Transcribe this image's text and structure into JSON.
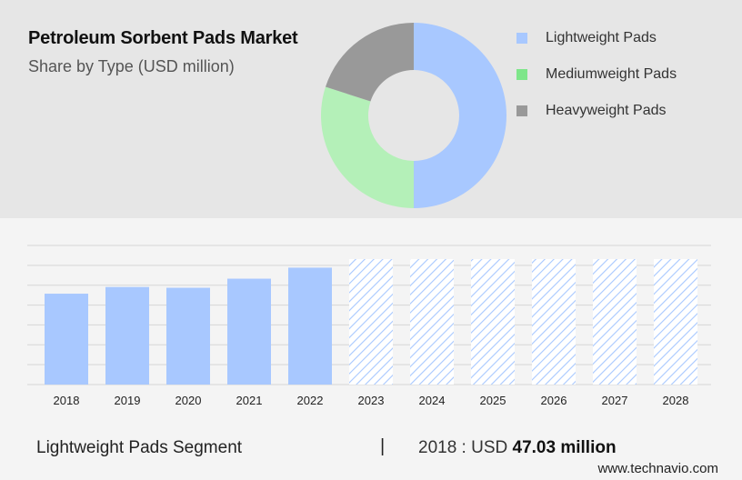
{
  "header": {
    "title": "Petroleum Sorbent Pads Market",
    "subtitle": "Share by Type (USD million)"
  },
  "chart_data": [
    {
      "type": "pie",
      "variant": "donut",
      "title": "Petroleum Sorbent Pads Market",
      "subtitle": "Share by Type (USD million)",
      "legend_position": "right",
      "slices": [
        {
          "name": "Lightweight Pads",
          "value": 50,
          "color": "#a8c8ff"
        },
        {
          "name": "Mediumweight Pads",
          "value": 30,
          "color": "#b4f0b8"
        },
        {
          "name": "Heavyweight Pads",
          "value": 20,
          "color": "#999999"
        }
      ],
      "legend_colors": [
        "#a8c8ff",
        "#7ee68a",
        "#999999"
      ]
    },
    {
      "type": "bar",
      "categories": [
        "2018",
        "2019",
        "2020",
        "2021",
        "2022",
        "2023",
        "2024",
        "2025",
        "2026",
        "2027",
        "2028"
      ],
      "values": [
        47.03,
        50.5,
        50.1,
        54.8,
        60.5,
        null,
        null,
        null,
        null,
        null,
        null
      ],
      "forecast_categories": [
        "2023",
        "2024",
        "2025",
        "2026",
        "2027",
        "2028"
      ],
      "ylim": [
        0,
        72
      ],
      "grid": true,
      "color": "#a8c8ff",
      "forecast_style": "hatched"
    }
  ],
  "footer": {
    "segment_label": "Lightweight Pads Segment",
    "divider": "|",
    "value_prefix": "2018 : USD",
    "value_bold": "47.03 million",
    "source": "www.technavio.com"
  }
}
